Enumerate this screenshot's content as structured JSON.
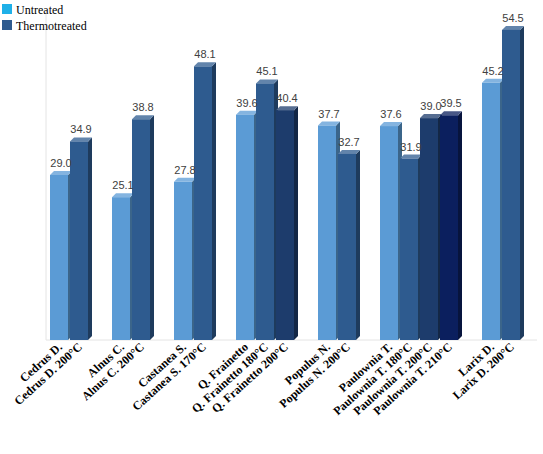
{
  "chart_data": {
    "type": "bar",
    "categories": [
      "Cedrus D.",
      "Cedrus D. 200°C",
      "Alnus C.",
      "Alnus C. 200°C",
      "Castanea S.",
      "Castanea S. 170°C",
      "Q. Frainetto",
      "Q. Frainetto 180°C",
      "Q. Frainetto 200°C",
      "Populus N.",
      "Populus N. 200°C",
      "Paulownia T.",
      "Paulownia T. 180°C",
      "Paulownia T. 200°C",
      "Paulownia T. 210°C",
      "Larix D.",
      "Larix D. 200°C"
    ],
    "series": [
      {
        "name": "Untreated",
        "color": "#1fb0e8",
        "colors": [
          "#5b9bd5",
          null,
          "#5b9bd5",
          null,
          "#5b9bd5",
          null,
          "#5b9bd5",
          null,
          null,
          "#5b9bd5",
          null,
          "#5b9bd5",
          null,
          null,
          null,
          "#5b9bd5",
          null
        ],
        "values": [
          29.0,
          null,
          25.1,
          null,
          27.8,
          null,
          39.6,
          null,
          null,
          37.7,
          null,
          37.6,
          null,
          null,
          null,
          45.2,
          null
        ],
        "value_labels": [
          "29.0",
          null,
          "25.1",
          null,
          "27.8",
          null,
          "39.6",
          null,
          null,
          "37.7",
          null,
          "37.6",
          null,
          null,
          null,
          "45.2",
          null
        ]
      },
      {
        "name": "Thermotreated",
        "color": "#2e5b8f",
        "colors": [
          null,
          "#2e5b8f",
          null,
          "#2e5b8f",
          null,
          "#2e5b8f",
          null,
          "#2e5b8f",
          "#1d3c6c",
          null,
          "#2e5b8f",
          null,
          "#2e5b8f",
          "#1d3c6c",
          "#0b1f5e",
          null,
          "#2e5b8f"
        ],
        "values": [
          null,
          34.9,
          null,
          38.8,
          null,
          48.1,
          null,
          45.1,
          40.4,
          null,
          32.7,
          null,
          31.9,
          39.0,
          39.5,
          null,
          54.5
        ],
        "value_labels": [
          null,
          "34.9",
          null,
          "38.8",
          null,
          "48.1",
          null,
          "45.1",
          "40.4",
          null,
          "32.7",
          null,
          "31.9",
          "39.0",
          "39.5",
          null,
          "54.5"
        ]
      }
    ],
    "ylim": [
      0,
      58
    ],
    "data_labels": true,
    "tick_labels": "x",
    "legend": "top-left",
    "grid": false
  }
}
